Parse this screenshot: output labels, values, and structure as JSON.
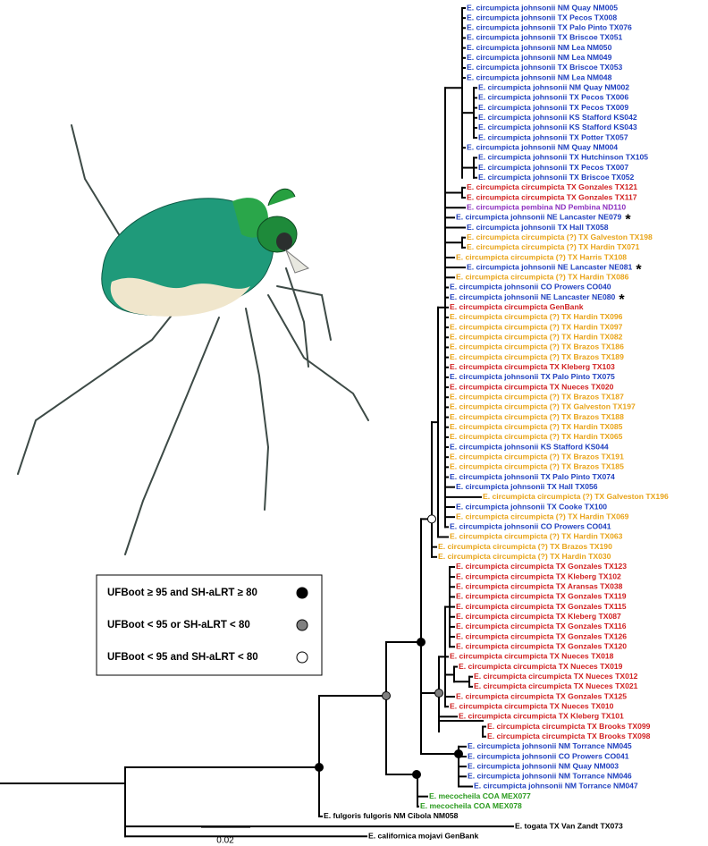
{
  "tree": {
    "leaves": [
      {
        "label": "E. circumpicta johnsonii NM Quay NM005",
        "color": "#1f3fbf"
      },
      {
        "label": "E. circumpicta johnsonii TX Pecos TX008",
        "color": "#1f3fbf"
      },
      {
        "label": "E. circumpicta johnsonii TX Palo Pinto TX076",
        "color": "#1f3fbf"
      },
      {
        "label": "E. circumpicta johnsonii TX Briscoe TX051",
        "color": "#1f3fbf"
      },
      {
        "label": "E. circumpicta johnsonii NM Lea NM050",
        "color": "#1f3fbf"
      },
      {
        "label": "E. circumpicta johnsonii NM Lea NM049",
        "color": "#1f3fbf"
      },
      {
        "label": "E. circumpicta johnsonii TX Briscoe TX053",
        "color": "#1f3fbf"
      },
      {
        "label": "E. circumpicta johnsonii NM Lea NM048",
        "color": "#1f3fbf"
      },
      {
        "label": "E. circumpicta johnsonii NM Quay NM002",
        "color": "#1f3fbf"
      },
      {
        "label": "E. circumpicta johnsonii TX Pecos TX006",
        "color": "#1f3fbf"
      },
      {
        "label": "E. circumpicta johnsonii TX Pecos TX009",
        "color": "#1f3fbf"
      },
      {
        "label": "E. circumpicta johnsonii KS Stafford KS042",
        "color": "#1f3fbf"
      },
      {
        "label": "E. circumpicta johnsonii KS Stafford KS043",
        "color": "#1f3fbf"
      },
      {
        "label": "E. circumpicta johnsonii TX Potter TX057",
        "color": "#1f3fbf"
      },
      {
        "label": "E. circumpicta johnsonii NM Quay NM004",
        "color": "#1f3fbf"
      },
      {
        "label": "E. circumpicta johnsonii TX Hutchinson TX105",
        "color": "#1f3fbf"
      },
      {
        "label": "E. circumpicta johnsonii TX Pecos TX007",
        "color": "#1f3fbf"
      },
      {
        "label": "E. circumpicta johnsonii TX Briscoe TX052",
        "color": "#1f3fbf"
      },
      {
        "label": "E. circumpicta circumpicta TX Gonzales TX121",
        "color": "#d01f1f"
      },
      {
        "label": "E. circumpicta circumpicta TX Gonzales TX117",
        "color": "#d01f1f"
      },
      {
        "label": "E. circumpicta pembina ND Pembina ND110",
        "color": "#8b2fbf"
      },
      {
        "label": "E. circumpicta johnsonii NE Lancaster NE079",
        "color": "#1f3fbf",
        "mark": "*"
      },
      {
        "label": "E. circumpicta johnsonii TX Hall TX058",
        "color": "#1f3fbf"
      },
      {
        "label": "E. circumpicta circumpicta (?) TX Galveston TX198",
        "color": "#e8a317"
      },
      {
        "label": "E. circumpicta circumpicta (?) TX Hardin TX071",
        "color": "#e8a317"
      },
      {
        "label": "E. circumpicta circumpicta (?) TX Harris TX108",
        "color": "#e8a317"
      },
      {
        "label": "E. circumpicta johnsonii NE Lancaster NE081",
        "color": "#1f3fbf",
        "mark": "*"
      },
      {
        "label": "E. circumpicta circumpicta (?) TX Hardin TX086",
        "color": "#e8a317"
      },
      {
        "label": "E. circumpicta johnsonii CO Prowers CO040",
        "color": "#1f3fbf"
      },
      {
        "label": "E. circumpicta johnsonii NE Lancaster NE080",
        "color": "#1f3fbf",
        "mark": "*"
      },
      {
        "label": "E. circumpicta circumpicta GenBank",
        "color": "#d01f1f"
      },
      {
        "label": "E. circumpicta circumpicta (?) TX Hardin TX096",
        "color": "#e8a317"
      },
      {
        "label": "E. circumpicta circumpicta (?) TX Hardin TX097",
        "color": "#e8a317"
      },
      {
        "label": "E. circumpicta circumpicta (?) TX Hardin TX082",
        "color": "#e8a317"
      },
      {
        "label": "E. circumpicta circumpicta (?) TX Brazos TX186",
        "color": "#e8a317"
      },
      {
        "label": "E. circumpicta circumpicta (?) TX Brazos TX189",
        "color": "#e8a317"
      },
      {
        "label": "E. circumpicta circumpicta TX Kleberg TX103",
        "color": "#d01f1f"
      },
      {
        "label": "E. circumpicta johnsonii TX Palo Pinto TX075",
        "color": "#1f3fbf"
      },
      {
        "label": "E. circumpicta circumpicta TX Nueces TX020",
        "color": "#d01f1f"
      },
      {
        "label": "E. circumpicta circumpicta (?) TX Brazos TX187",
        "color": "#e8a317"
      },
      {
        "label": "E. circumpicta circumpicta (?) TX Galveston TX197",
        "color": "#e8a317"
      },
      {
        "label": "E. circumpicta circumpicta (?) TX Brazos TX188",
        "color": "#e8a317"
      },
      {
        "label": "E. circumpicta circumpicta (?) TX Hardin TX085",
        "color": "#e8a317"
      },
      {
        "label": "E. circumpicta circumpicta (?) TX Hardin TX065",
        "color": "#e8a317"
      },
      {
        "label": "E. circumpicta johnsonii KS Stafford KS044",
        "color": "#1f3fbf"
      },
      {
        "label": "E. circumpicta circumpicta (?) TX Brazos TX191",
        "color": "#e8a317"
      },
      {
        "label": "E. circumpicta circumpicta (?) TX Brazos TX185",
        "color": "#e8a317"
      },
      {
        "label": "E. circumpicta johnsonii TX Palo Pinto TX074",
        "color": "#1f3fbf"
      },
      {
        "label": "E. circumpicta johnsonii TX Hall TX056",
        "color": "#1f3fbf"
      },
      {
        "label": "E. circumpicta circumpicta (?) TX Galveston TX196",
        "color": "#e8a317"
      },
      {
        "label": "E. circumpicta johnsonii TX Cooke TX100",
        "color": "#1f3fbf"
      },
      {
        "label": "E. circumpicta circumpicta (?) TX Hardin TX069",
        "color": "#e8a317"
      },
      {
        "label": "E. circumpicta johnsonii CO Prowers CO041",
        "color": "#1f3fbf"
      },
      {
        "label": "E. circumpicta circumpicta (?) TX Hardin TX063",
        "color": "#e8a317"
      },
      {
        "label": "E. circumpicta circumpicta (?) TX Brazos TX190",
        "color": "#e8a317"
      },
      {
        "label": "E. circumpicta circumpicta (?) TX Hardin TX030",
        "color": "#e8a317"
      },
      {
        "label": "E. circumpicta circumpicta TX Gonzales TX123",
        "color": "#d01f1f"
      },
      {
        "label": "E. circumpicta circumpicta TX Kleberg TX102",
        "color": "#d01f1f"
      },
      {
        "label": "E. circumpicta circumpicta TX Aransas TX038",
        "color": "#d01f1f"
      },
      {
        "label": "E. circumpicta circumpicta TX Gonzales TX119",
        "color": "#d01f1f"
      },
      {
        "label": "E. circumpicta circumpicta TX Gonzales TX115",
        "color": "#d01f1f"
      },
      {
        "label": "E. circumpicta circumpicta TX Kleberg TX087",
        "color": "#d01f1f"
      },
      {
        "label": "E. circumpicta circumpicta TX Gonzales TX116",
        "color": "#d01f1f"
      },
      {
        "label": "E. circumpicta circumpicta TX Gonzales TX126",
        "color": "#d01f1f"
      },
      {
        "label": "E. circumpicta circumpicta TX Gonzales TX120",
        "color": "#d01f1f"
      },
      {
        "label": "E. circumpicta circumpicta TX Nueces TX018",
        "color": "#d01f1f"
      },
      {
        "label": "E. circumpicta circumpicta TX Nueces TX019",
        "color": "#d01f1f"
      },
      {
        "label": "E. circumpicta circumpicta TX Nueces TX012",
        "color": "#d01f1f"
      },
      {
        "label": "E. circumpicta circumpicta TX Nueces TX021",
        "color": "#d01f1f"
      },
      {
        "label": "E. circumpicta circumpicta TX Gonzales TX125",
        "color": "#d01f1f"
      },
      {
        "label": "E. circumpicta circumpicta TX Nueces TX010",
        "color": "#d01f1f"
      },
      {
        "label": "E. circumpicta circumpicta TX Kleberg TX101",
        "color": "#d01f1f"
      },
      {
        "label": "E. circumpicta circumpicta TX Brooks TX099",
        "color": "#d01f1f"
      },
      {
        "label": "E. circumpicta circumpicta TX Brooks TX098",
        "color": "#d01f1f"
      },
      {
        "label": "E. circumpicta johnsonii NM Torrance NM045",
        "color": "#1f3fbf"
      },
      {
        "label": "E. circumpicta johnsonii CO Prowers CO041",
        "color": "#1f3fbf"
      },
      {
        "label": "E. circumpicta johnsonii NM Quay NM003",
        "color": "#1f3fbf"
      },
      {
        "label": "E. circumpicta johnsonii NM Torrance NM046",
        "color": "#1f3fbf"
      },
      {
        "label": "E. circumpicta johnsonii NM Torrance NM047",
        "color": "#1f3fbf"
      },
      {
        "label": "E. mecocheila COA MEX077",
        "color": "#2a9a1e"
      },
      {
        "label": "E. mecocheila COA MEX078",
        "color": "#2a9a1e"
      },
      {
        "label": "E. fulgoris fulgoris NM Cibola NM058",
        "color": "#000000"
      },
      {
        "label": "E. togata TX Van Zandt TX073",
        "color": "#000000"
      },
      {
        "label": "E. californica mojavi GenBank",
        "color": "#000000"
      }
    ]
  },
  "legend": [
    {
      "label": "UFBoot ≥ 95 and SH-aLRT ≥ 80",
      "color": "#000000"
    },
    {
      "label": "UFBoot < 95 or SH-aLRT < 80",
      "color": "#808080"
    },
    {
      "label": "UFBoot < 95 and SH-aLRT < 80",
      "color": "#ffffff"
    }
  ],
  "scale_bar": {
    "label": "0.02"
  }
}
